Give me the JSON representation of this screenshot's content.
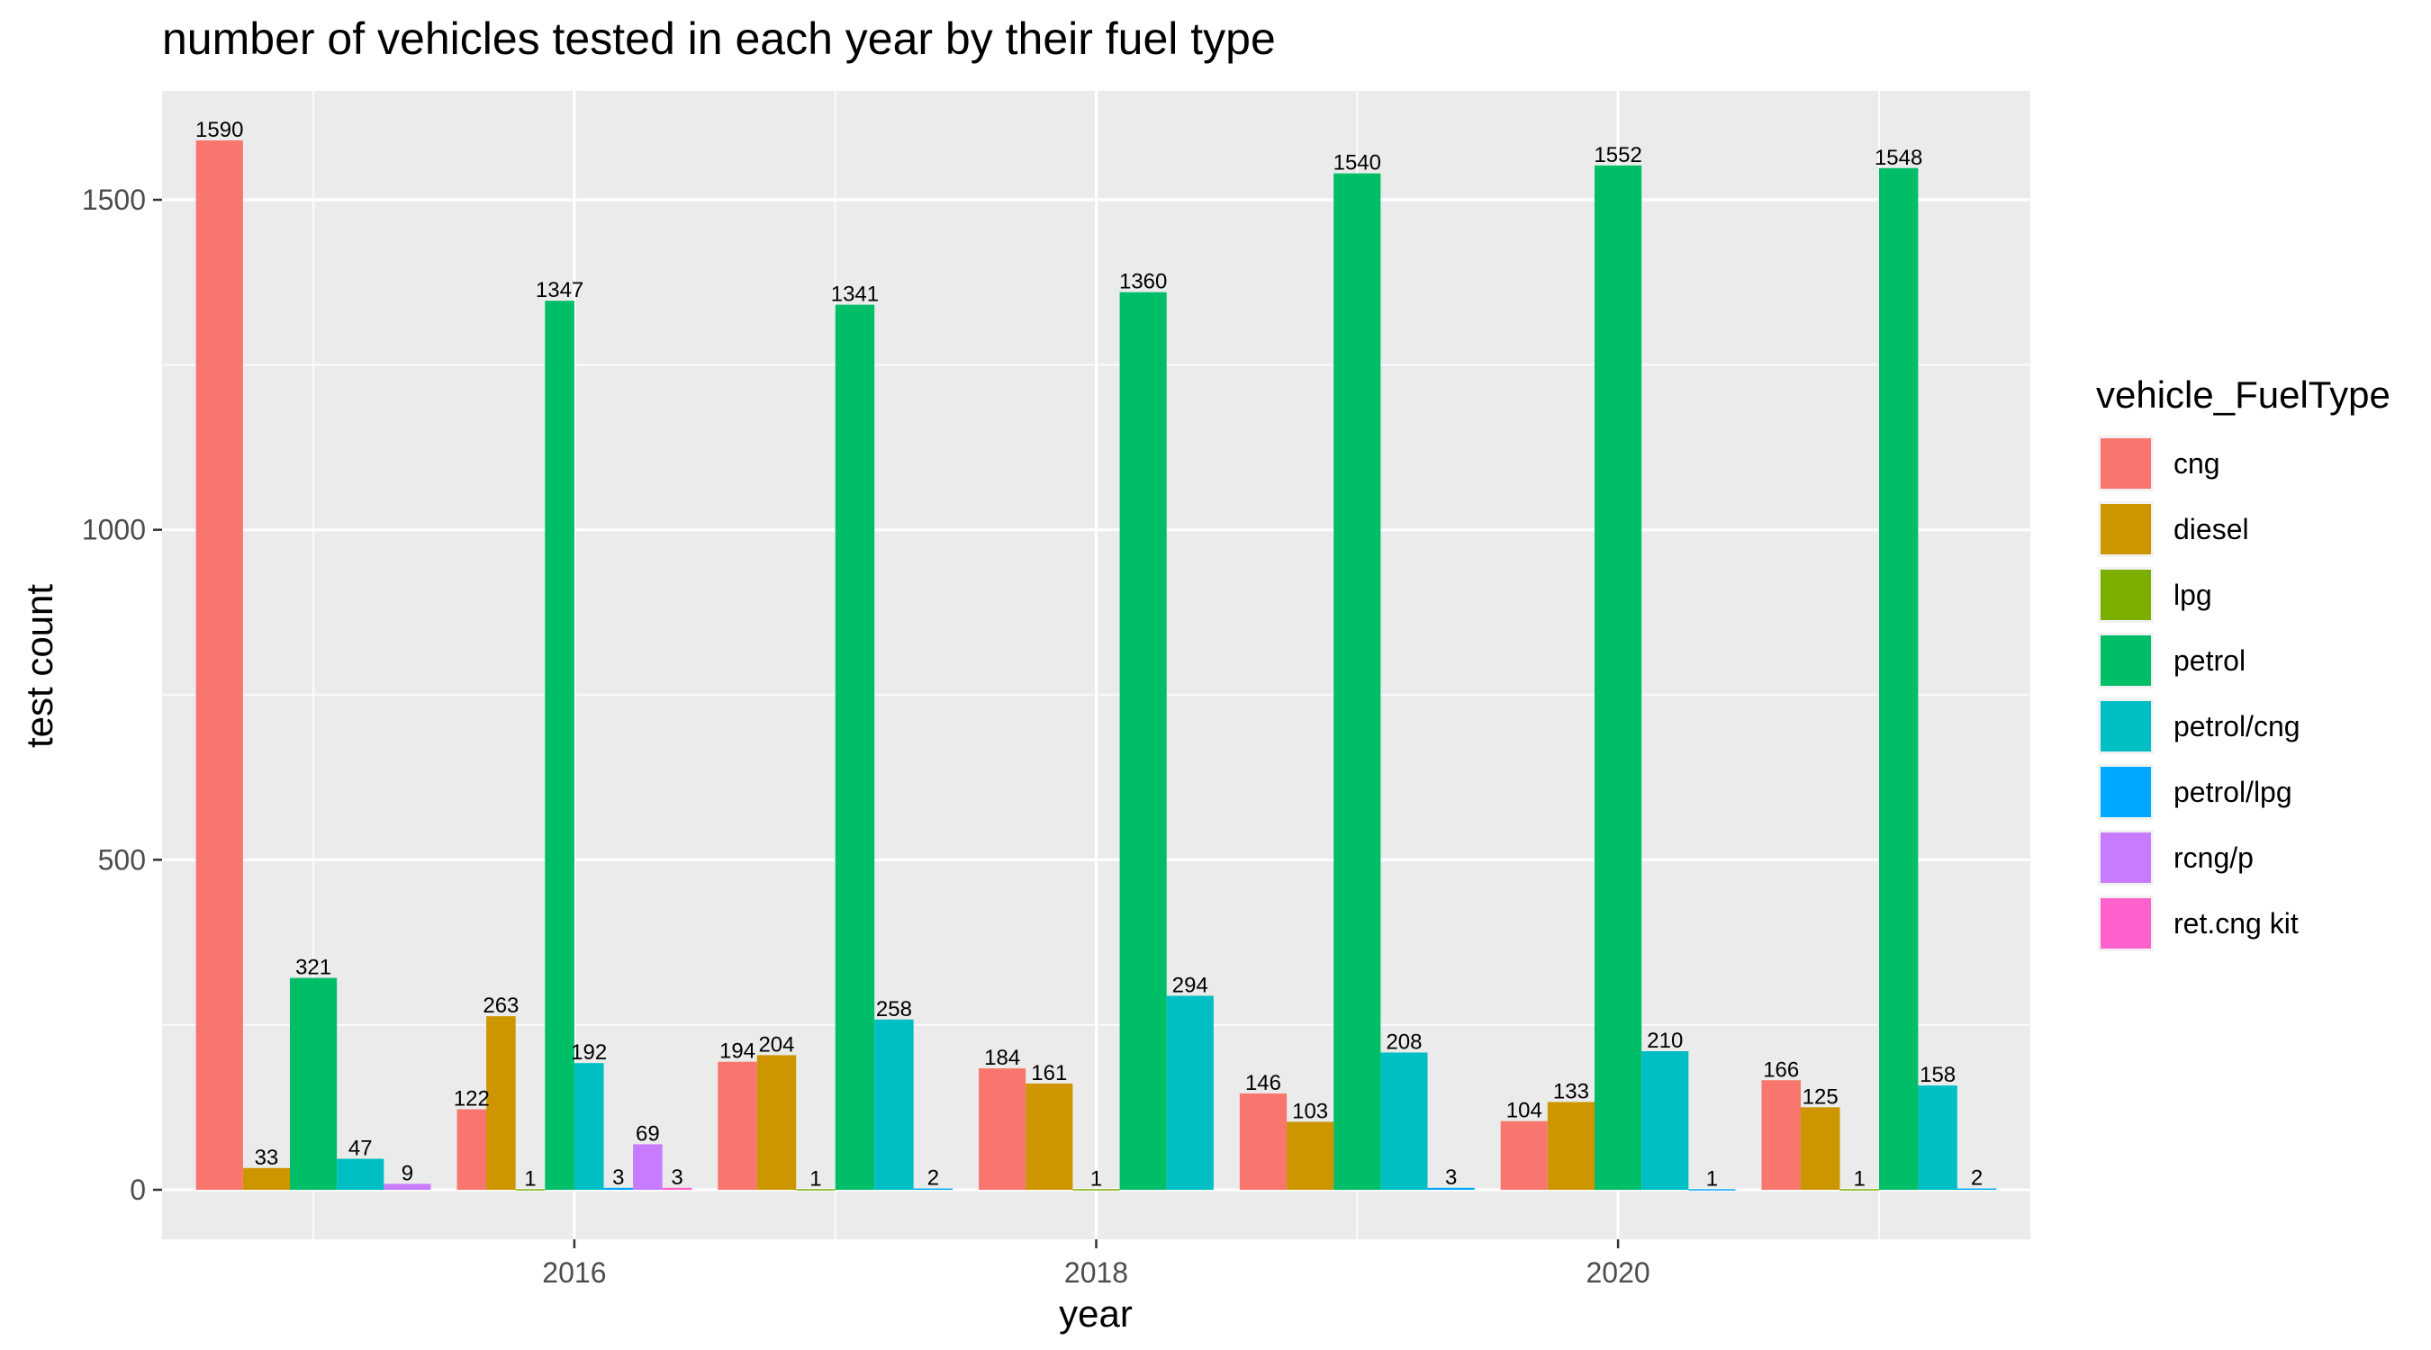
{
  "chart_data": {
    "type": "bar",
    "title": "number of vehicles tested in each year by their fuel type",
    "xlabel": "year",
    "ylabel": "test count",
    "x_tick_labels": [
      "2016",
      "2018",
      "2020"
    ],
    "y_tick_labels": [
      "0",
      "500",
      "1000",
      "1500"
    ],
    "ylim": [
      -75,
      1665
    ],
    "xlim": [
      2014.42,
      2021.58
    ],
    "grid": true,
    "legend_position": "right",
    "legend_title": "vehicle_FuelType",
    "categories": [
      2015,
      2016,
      2017,
      2018,
      2019,
      2020,
      2021
    ],
    "series": [
      {
        "name": "cng",
        "color": "#F8766D",
        "values": [
          1590,
          122,
          194,
          184,
          146,
          104,
          166
        ]
      },
      {
        "name": "diesel",
        "color": "#CD9600",
        "values": [
          33,
          263,
          204,
          161,
          103,
          133,
          125
        ]
      },
      {
        "name": "lpg",
        "color": "#7CAE00",
        "values": [
          null,
          1,
          1,
          1,
          null,
          null,
          1
        ]
      },
      {
        "name": "petrol",
        "color": "#00BE67",
        "values": [
          321,
          1347,
          1341,
          1360,
          1540,
          1552,
          1548
        ]
      },
      {
        "name": "petrol/cng",
        "color": "#00BFC4",
        "values": [
          47,
          192,
          258,
          294,
          208,
          210,
          158
        ]
      },
      {
        "name": "petrol/lpg",
        "color": "#00A9FF",
        "values": [
          null,
          3,
          2,
          null,
          3,
          1,
          2
        ]
      },
      {
        "name": "rcng/p",
        "color": "#C77CFF",
        "values": [
          9,
          69,
          null,
          null,
          null,
          null,
          null
        ]
      },
      {
        "name": "ret.cng kit",
        "color": "#FF61CC",
        "values": [
          null,
          3,
          null,
          null,
          null,
          null,
          null
        ]
      }
    ]
  }
}
